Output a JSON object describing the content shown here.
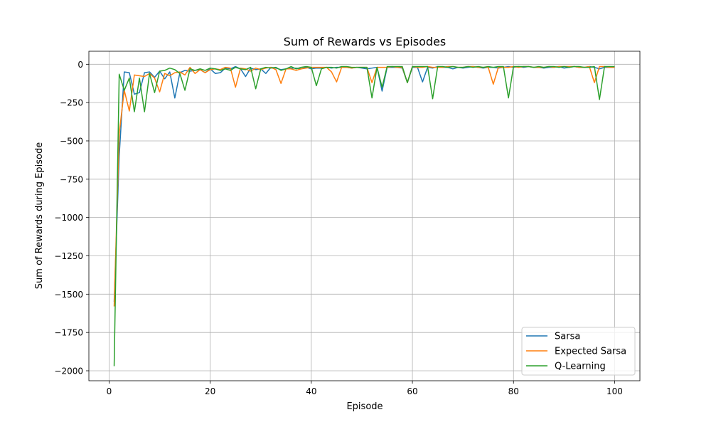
{
  "chart_data": {
    "type": "line",
    "title": "Sum of Rewards vs Episodes",
    "xlabel": "Episode",
    "ylabel": "Sum of Rewards during Episode",
    "xlim": [
      -4,
      105
    ],
    "ylim": [
      -2065,
      85
    ],
    "xticks": [
      0,
      20,
      40,
      60,
      80,
      100
    ],
    "yticks": [
      0,
      -250,
      -500,
      -750,
      -1000,
      -1250,
      -1500,
      -1750,
      -2000
    ],
    "xtick_labels": [
      "0",
      "20",
      "40",
      "60",
      "80",
      "100"
    ],
    "ytick_labels": [
      "0",
      "−250",
      "−500",
      "−750",
      "−1000",
      "−1250",
      "−1500",
      "−1750",
      "−2000"
    ],
    "grid": true,
    "legend_position": "lower-right",
    "x": [
      1,
      2,
      3,
      4,
      5,
      6,
      7,
      8,
      9,
      10,
      11,
      12,
      13,
      14,
      15,
      16,
      17,
      18,
      19,
      20,
      21,
      22,
      23,
      24,
      25,
      26,
      27,
      28,
      29,
      30,
      31,
      32,
      33,
      34,
      35,
      36,
      37,
      38,
      39,
      40,
      41,
      42,
      43,
      44,
      45,
      46,
      47,
      48,
      49,
      50,
      51,
      52,
      53,
      54,
      55,
      56,
      57,
      58,
      59,
      60,
      61,
      62,
      63,
      64,
      65,
      66,
      67,
      68,
      69,
      70,
      71,
      72,
      73,
      74,
      75,
      76,
      77,
      78,
      79,
      80,
      81,
      82,
      83,
      84,
      85,
      86,
      87,
      88,
      89,
      90,
      91,
      92,
      93,
      94,
      95,
      96,
      97,
      98,
      99,
      100
    ],
    "series": [
      {
        "name": "Sarsa",
        "color": "#1f77b4",
        "values": [
          -1550,
          -600,
          -50,
          -55,
          -195,
          -185,
          -55,
          -50,
          -85,
          -45,
          -95,
          -50,
          -220,
          -55,
          -40,
          -45,
          -40,
          -35,
          -55,
          -30,
          -60,
          -55,
          -25,
          -30,
          -15,
          -30,
          -80,
          -25,
          -35,
          -30,
          -60,
          -20,
          -25,
          -35,
          -30,
          -25,
          -25,
          -30,
          -20,
          -30,
          -25,
          -25,
          -20,
          -25,
          -20,
          -20,
          -20,
          -25,
          -20,
          -25,
          -30,
          -25,
          -20,
          -175,
          -20,
          -20,
          -20,
          -25,
          -120,
          -20,
          -20,
          -115,
          -20,
          -25,
          -15,
          -20,
          -20,
          -30,
          -20,
          -25,
          -20,
          -15,
          -20,
          -25,
          -20,
          -20,
          -25,
          -20,
          -15,
          -20,
          -15,
          -20,
          -15,
          -20,
          -20,
          -25,
          -20,
          -20,
          -15,
          -25,
          -20,
          -15,
          -20,
          -20,
          -15,
          -20,
          -30,
          -20,
          -20,
          -20
        ]
      },
      {
        "name": "Expected Sarsa",
        "color": "#ff7f0e",
        "values": [
          -1580,
          -450,
          -170,
          -305,
          -70,
          -75,
          -80,
          -60,
          -90,
          -180,
          -60,
          -75,
          -55,
          -50,
          -70,
          -20,
          -60,
          -35,
          -55,
          -35,
          -30,
          -35,
          -20,
          -25,
          -150,
          -25,
          -30,
          -45,
          -25,
          -35,
          -25,
          -20,
          -35,
          -125,
          -30,
          -30,
          -40,
          -30,
          -25,
          -20,
          -20,
          -20,
          -20,
          -50,
          -115,
          -20,
          -20,
          -25,
          -20,
          -20,
          -20,
          -120,
          -20,
          -20,
          -20,
          -15,
          -20,
          -20,
          -120,
          -15,
          -20,
          -20,
          -15,
          -20,
          -20,
          -20,
          -15,
          -15,
          -20,
          -20,
          -15,
          -15,
          -20,
          -20,
          -20,
          -130,
          -20,
          -20,
          -20,
          -15,
          -20,
          -15,
          -15,
          -20,
          -20,
          -20,
          -15,
          -20,
          -15,
          -15,
          -15,
          -15,
          -20,
          -20,
          -15,
          -120,
          -15,
          -15,
          -20,
          -20
        ]
      },
      {
        "name": "Q-Learning",
        "color": "#2ca02c",
        "values": [
          -1970,
          -65,
          -170,
          -90,
          -310,
          -90,
          -310,
          -60,
          -185,
          -45,
          -40,
          -25,
          -35,
          -60,
          -170,
          -30,
          -40,
          -30,
          -40,
          -25,
          -30,
          -40,
          -30,
          -40,
          -20,
          -30,
          -35,
          -20,
          -160,
          -30,
          -20,
          -25,
          -20,
          -40,
          -30,
          -15,
          -30,
          -20,
          -15,
          -20,
          -140,
          -30,
          -20,
          -20,
          -25,
          -15,
          -15,
          -20,
          -20,
          -20,
          -20,
          -220,
          -20,
          -150,
          -15,
          -15,
          -15,
          -15,
          -120,
          -15,
          -15,
          -15,
          -15,
          -225,
          -15,
          -15,
          -20,
          -15,
          -20,
          -20,
          -15,
          -20,
          -15,
          -20,
          -15,
          -20,
          -15,
          -15,
          -220,
          -15,
          -15,
          -15,
          -15,
          -20,
          -15,
          -20,
          -15,
          -15,
          -20,
          -15,
          -20,
          -15,
          -15,
          -20,
          -20,
          -15,
          -230,
          -15,
          -15,
          -15
        ]
      }
    ]
  }
}
